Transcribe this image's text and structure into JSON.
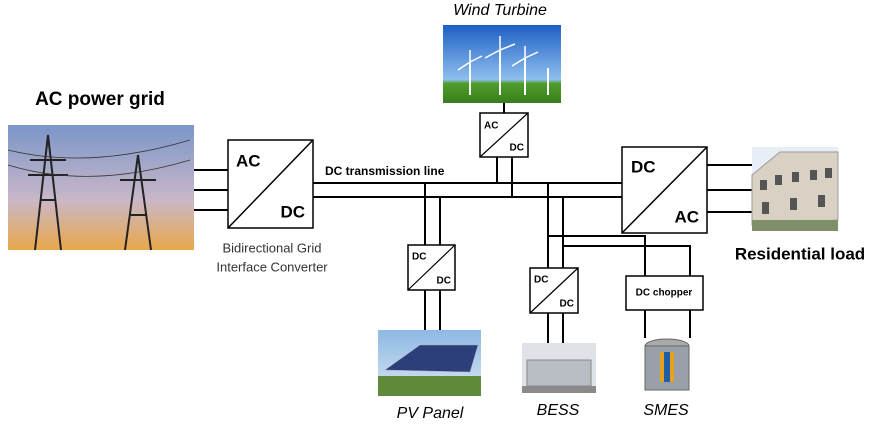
{
  "line_label": "DC transmission line",
  "nodes": [
    {
      "label": "AC power grid"
    },
    {
      "label": "Wind Turbine"
    },
    {
      "label": "Residential load"
    },
    {
      "label": "PV Panel"
    },
    {
      "label": "BESS"
    },
    {
      "label": "SMES"
    }
  ],
  "converters": [
    {
      "top": "AC",
      "bottom": "DC",
      "caption": [
        "Bidirectional Grid",
        "Interface Converter"
      ]
    },
    {
      "top": "AC",
      "bottom": "DC"
    },
    {
      "top": "DC",
      "bottom": "AC"
    },
    {
      "top": "DC",
      "bottom": "DC"
    },
    {
      "top": "DC",
      "bottom": "DC"
    },
    {
      "label": "DC chopper"
    }
  ]
}
